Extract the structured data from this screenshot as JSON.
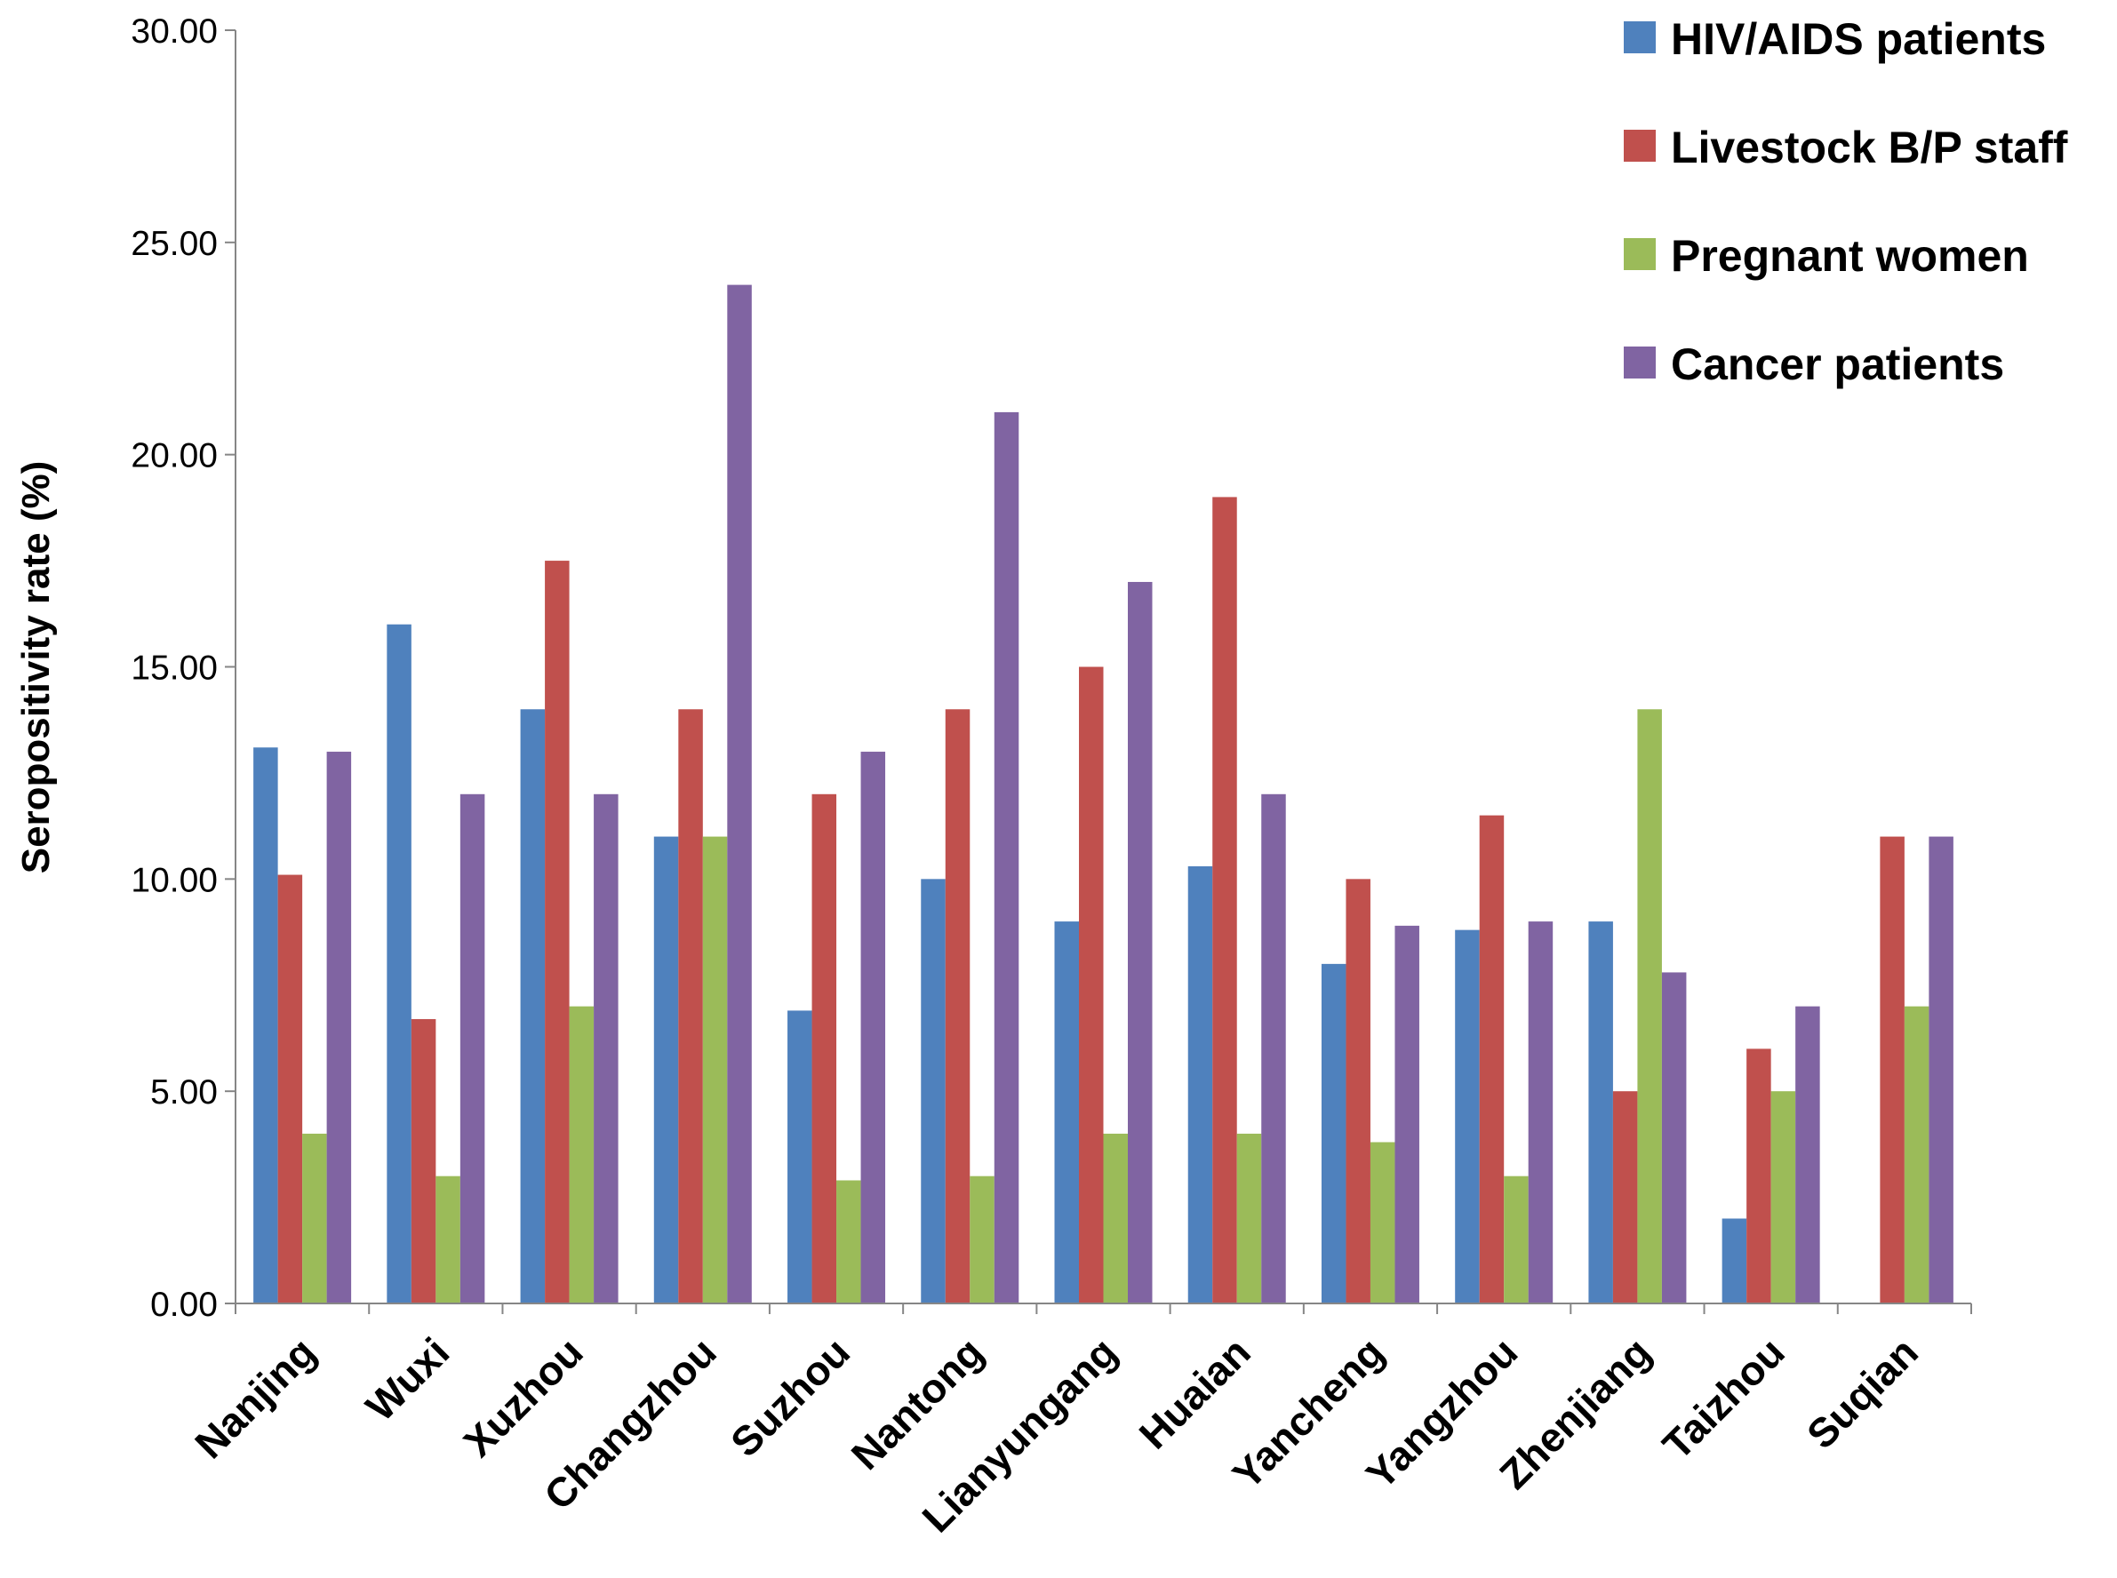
{
  "chart_data": {
    "type": "bar",
    "title": "",
    "xlabel": "",
    "ylabel": "Seropositivity rate (%)",
    "ylim": [
      0,
      30
    ],
    "yticks": [
      0,
      5,
      10,
      15,
      20,
      25,
      30
    ],
    "ytick_labels": [
      "0.00",
      "5.00",
      "10.00",
      "15.00",
      "20.00",
      "25.00",
      "30.00"
    ],
    "grid": false,
    "legend_position": "top-right",
    "categories": [
      "Nanjing",
      "Wuxi",
      "Xuzhou",
      "Changzhou",
      "Suzhou",
      "Nantong",
      "Lianyungang",
      "Huaian",
      "Yancheng",
      "Yangzhou",
      "Zhenjiang",
      "Taizhou",
      "Suqian"
    ],
    "series": [
      {
        "name": "HIV/AIDS patients",
        "color": "#4F81BD",
        "values": [
          13.1,
          16.0,
          14.0,
          11.0,
          6.9,
          10.0,
          9.0,
          10.3,
          8.0,
          8.8,
          9.0,
          2.0,
          0
        ]
      },
      {
        "name": "Livestock B/P staff",
        "color": "#C0504D",
        "values": [
          10.1,
          6.7,
          17.5,
          14.0,
          12.0,
          14.0,
          15.0,
          19.0,
          10.0,
          11.5,
          5.0,
          6.0,
          11.0
        ]
      },
      {
        "name": "Pregnant women",
        "color": "#9BBB59",
        "values": [
          4.0,
          3.0,
          7.0,
          11.0,
          2.9,
          3.0,
          4.0,
          4.0,
          3.8,
          3.0,
          14.0,
          5.0,
          7.0
        ]
      },
      {
        "name": "Cancer patients",
        "color": "#8064A2",
        "values": [
          13.0,
          12.0,
          12.0,
          24.0,
          13.0,
          21.0,
          17.0,
          12.0,
          8.9,
          9.0,
          7.8,
          7.0,
          11.0
        ]
      }
    ]
  }
}
